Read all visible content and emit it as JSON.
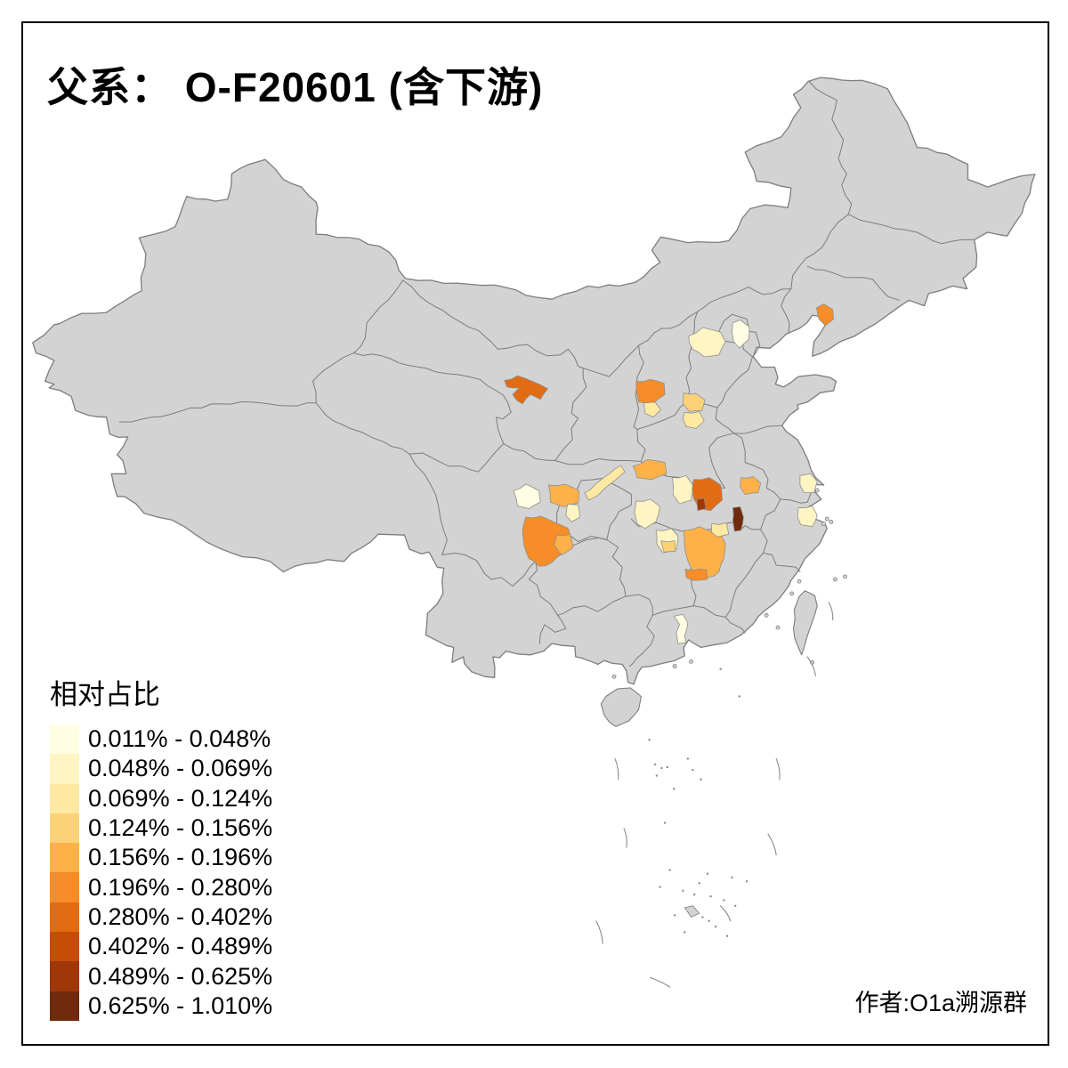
{
  "title": "父系： O-F20601 (含下游)",
  "attribution": "作者:O1a溯源群",
  "legend": {
    "title": "相对占比",
    "items": [
      {
        "label": "0.011% - 0.048%",
        "color": "#FFFEE3"
      },
      {
        "label": "0.048% - 0.069%",
        "color": "#FEF5C3"
      },
      {
        "label": "0.069% - 0.124%",
        "color": "#FEE9A3"
      },
      {
        "label": "0.124% - 0.156%",
        "color": "#FDD277"
      },
      {
        "label": "0.156% - 0.196%",
        "color": "#FDB148"
      },
      {
        "label": "0.196% - 0.280%",
        "color": "#F68D28"
      },
      {
        "label": "0.280% - 0.402%",
        "color": "#E26C13"
      },
      {
        "label": "0.402% - 0.489%",
        "color": "#C54D05"
      },
      {
        "label": "0.489% - 0.625%",
        "color": "#A03707"
      },
      {
        "label": "0.625% - 1.010%",
        "color": "#702A0D"
      }
    ]
  },
  "map": {
    "land_fill": "#D3D3D3",
    "boundary_color": "#7D7D7D",
    "sea_color": "#FFFFFF",
    "regions": [
      {
        "name": "liaoning-anshan",
        "cls": 6,
        "poly": [
          [
            121.45,
            41.3
          ],
          [
            121.9,
            41.5
          ],
          [
            122.45,
            41.2
          ],
          [
            122.5,
            40.7
          ],
          [
            122.0,
            40.35
          ],
          [
            121.6,
            40.7
          ]
        ]
      },
      {
        "name": "beijing",
        "cls": 1,
        "poly": [
          [
            116.35,
            40.5
          ],
          [
            116.8,
            40.65
          ],
          [
            117.35,
            40.3
          ],
          [
            117.3,
            39.6
          ],
          [
            116.75,
            39.15
          ],
          [
            116.4,
            39.5
          ],
          [
            116.3,
            40.0
          ]
        ]
      },
      {
        "name": "baoding",
        "cls": 2,
        "poly": [
          [
            113.65,
            39.8
          ],
          [
            114.5,
            40.25
          ],
          [
            115.6,
            40.0
          ],
          [
            115.9,
            39.5
          ],
          [
            115.5,
            38.8
          ],
          [
            114.6,
            38.7
          ],
          [
            113.9,
            39.1
          ]
        ]
      },
      {
        "name": "gansu-wuwei",
        "cls": 7,
        "poly": [
          [
            102.4,
            37.45
          ],
          [
            103.2,
            37.7
          ],
          [
            104.1,
            37.4
          ],
          [
            105.05,
            37.0
          ],
          [
            104.6,
            36.45
          ],
          [
            104.0,
            36.7
          ],
          [
            103.5,
            36.2
          ],
          [
            102.9,
            36.7
          ],
          [
            103.3,
            37.05
          ],
          [
            102.55,
            37.1
          ]
        ]
      },
      {
        "name": "shanxi-lvliang",
        "cls": 6,
        "poly": [
          [
            110.45,
            37.4
          ],
          [
            111.3,
            37.5
          ],
          [
            112.15,
            37.3
          ],
          [
            112.2,
            36.7
          ],
          [
            111.5,
            36.25
          ],
          [
            110.6,
            36.3
          ],
          [
            110.45,
            36.9
          ]
        ]
      },
      {
        "name": "shanxi-linfen",
        "cls": 3,
        "poly": [
          [
            110.9,
            36.25
          ],
          [
            111.6,
            36.3
          ],
          [
            111.95,
            35.9
          ],
          [
            111.5,
            35.5
          ],
          [
            111.0,
            35.7
          ]
        ]
      },
      {
        "name": "shanxi-changzhi",
        "cls": 4,
        "poly": [
          [
            113.35,
            36.8
          ],
          [
            114.1,
            36.75
          ],
          [
            114.65,
            36.4
          ],
          [
            114.45,
            35.85
          ],
          [
            113.7,
            35.8
          ],
          [
            113.3,
            36.2
          ]
        ]
      },
      {
        "name": "henan-jiaozuo",
        "cls": 3,
        "poly": [
          [
            113.4,
            35.75
          ],
          [
            114.3,
            35.8
          ],
          [
            114.6,
            35.3
          ],
          [
            114.1,
            34.9
          ],
          [
            113.5,
            35.0
          ],
          [
            113.3,
            35.4
          ]
        ]
      },
      {
        "name": "chengdu",
        "cls": 1,
        "poly": [
          [
            102.95,
            31.6
          ],
          [
            103.7,
            31.95
          ],
          [
            104.5,
            31.6
          ],
          [
            104.6,
            31.0
          ],
          [
            103.9,
            30.65
          ],
          [
            103.2,
            30.8
          ]
        ]
      },
      {
        "name": "nanchong",
        "cls": 5,
        "poly": [
          [
            105.1,
            31.9
          ],
          [
            106.1,
            31.95
          ],
          [
            106.95,
            31.6
          ],
          [
            106.9,
            30.95
          ],
          [
            106.0,
            30.75
          ],
          [
            105.2,
            31.0
          ]
        ]
      },
      {
        "name": "guangan",
        "cls": 2,
        "poly": [
          [
            106.25,
            30.9
          ],
          [
            106.9,
            30.85
          ],
          [
            107.0,
            30.2
          ],
          [
            106.5,
            29.95
          ],
          [
            106.15,
            30.3
          ]
        ]
      },
      {
        "name": "sichuan-south",
        "cls": 6,
        "poly": [
          [
            103.7,
            30.2
          ],
          [
            104.6,
            30.25
          ],
          [
            105.5,
            29.9
          ],
          [
            106.3,
            29.6
          ],
          [
            106.5,
            29.0
          ],
          [
            106.0,
            28.3
          ],
          [
            105.3,
            27.8
          ],
          [
            104.5,
            27.6
          ],
          [
            103.9,
            28.0
          ],
          [
            103.6,
            28.7
          ],
          [
            103.5,
            29.5
          ]
        ]
      },
      {
        "name": "luzhou",
        "cls": 5,
        "poly": [
          [
            105.6,
            29.25
          ],
          [
            106.4,
            29.3
          ],
          [
            106.6,
            28.6
          ],
          [
            105.9,
            28.2
          ],
          [
            105.45,
            28.7
          ]
        ]
      },
      {
        "name": "wanzhou",
        "cls": 3,
        "poly": [
          [
            107.3,
            31.5
          ],
          [
            107.9,
            31.9
          ],
          [
            108.8,
            32.5
          ],
          [
            109.5,
            32.95
          ],
          [
            109.75,
            32.6
          ],
          [
            109.0,
            32.05
          ],
          [
            108.1,
            31.35
          ],
          [
            107.55,
            31.1
          ]
        ]
      },
      {
        "name": "shiyan",
        "cls": 5,
        "poly": [
          [
            110.25,
            32.9
          ],
          [
            111.1,
            33.25
          ],
          [
            112.2,
            33.1
          ],
          [
            112.3,
            32.5
          ],
          [
            111.4,
            32.2
          ],
          [
            110.5,
            32.3
          ]
        ]
      },
      {
        "name": "jingmen",
        "cls": 2,
        "poly": [
          [
            112.65,
            32.3
          ],
          [
            113.5,
            32.4
          ],
          [
            113.9,
            31.9
          ],
          [
            113.8,
            31.1
          ],
          [
            113.1,
            30.9
          ],
          [
            112.7,
            31.4
          ]
        ]
      },
      {
        "name": "yichang",
        "cls": 2,
        "poly": [
          [
            110.45,
            31.05
          ],
          [
            111.3,
            31.15
          ],
          [
            111.9,
            30.75
          ],
          [
            111.65,
            29.95
          ],
          [
            111.0,
            29.6
          ],
          [
            110.5,
            29.85
          ],
          [
            110.35,
            30.45
          ]
        ]
      },
      {
        "name": "wuhan-xiaogan",
        "cls": 7,
        "poly": [
          [
            113.95,
            32.2
          ],
          [
            114.9,
            32.3
          ],
          [
            115.6,
            31.9
          ],
          [
            115.7,
            31.1
          ],
          [
            115.0,
            30.55
          ],
          [
            114.3,
            30.65
          ],
          [
            113.95,
            31.2
          ]
        ]
      },
      {
        "name": "wuhan-dark",
        "cls": 9,
        "poly": [
          [
            114.15,
            31.15
          ],
          [
            114.6,
            31.2
          ],
          [
            114.7,
            30.65
          ],
          [
            114.2,
            30.55
          ]
        ]
      },
      {
        "name": "hefei",
        "cls": 5,
        "poly": [
          [
            116.85,
            32.3
          ],
          [
            117.6,
            32.35
          ],
          [
            118.05,
            32.0
          ],
          [
            117.9,
            31.5
          ],
          [
            117.1,
            31.4
          ],
          [
            116.8,
            31.8
          ]
        ]
      },
      {
        "name": "anqing",
        "cls": 10,
        "poly": [
          [
            116.35,
            30.7
          ],
          [
            116.8,
            30.75
          ],
          [
            117.0,
            30.2
          ],
          [
            116.85,
            29.5
          ],
          [
            116.45,
            29.45
          ],
          [
            116.35,
            30.0
          ]
        ]
      },
      {
        "name": "hunan-jiangxi",
        "cls": 5,
        "poly": [
          [
            113.35,
            29.5
          ],
          [
            114.3,
            29.7
          ],
          [
            115.1,
            29.4
          ],
          [
            115.6,
            29.4
          ],
          [
            115.9,
            28.8
          ],
          [
            115.8,
            28.0
          ],
          [
            115.5,
            27.3
          ],
          [
            114.8,
            27.0
          ],
          [
            114.3,
            27.3
          ],
          [
            113.9,
            27.3
          ],
          [
            113.6,
            27.9
          ],
          [
            113.4,
            28.6
          ]
        ]
      },
      {
        "name": "jiujiang",
        "cls": 3,
        "poly": [
          [
            115.05,
            29.85
          ],
          [
            115.95,
            29.9
          ],
          [
            116.1,
            29.3
          ],
          [
            115.4,
            29.15
          ],
          [
            115.05,
            29.4
          ]
        ]
      },
      {
        "name": "jian",
        "cls": 6,
        "poly": [
          [
            113.45,
            27.45
          ],
          [
            114.75,
            27.4
          ],
          [
            114.8,
            26.9
          ],
          [
            113.9,
            26.85
          ],
          [
            113.5,
            27.0
          ]
        ]
      },
      {
        "name": "changde",
        "cls": 2,
        "poly": [
          [
            111.65,
            29.5
          ],
          [
            112.6,
            29.6
          ],
          [
            113.0,
            29.2
          ],
          [
            112.9,
            28.5
          ],
          [
            112.1,
            28.3
          ],
          [
            111.7,
            28.8
          ]
        ]
      },
      {
        "name": "yiyang",
        "cls": 4,
        "poly": [
          [
            111.95,
            28.95
          ],
          [
            112.8,
            28.95
          ],
          [
            112.85,
            28.4
          ],
          [
            112.15,
            28.35
          ]
        ]
      },
      {
        "name": "suzhou-nantong",
        "cls": 2,
        "poly": [
          [
            120.45,
            32.4
          ],
          [
            121.1,
            32.5
          ],
          [
            121.5,
            32.1
          ],
          [
            121.3,
            31.5
          ],
          [
            120.7,
            31.5
          ],
          [
            120.45,
            31.9
          ]
        ]
      },
      {
        "name": "ningbo-shaoxing",
        "cls": 2,
        "poly": [
          [
            120.35,
            30.7
          ],
          [
            121.2,
            30.8
          ],
          [
            121.5,
            30.3
          ],
          [
            121.2,
            29.7
          ],
          [
            120.5,
            29.8
          ],
          [
            120.3,
            30.2
          ]
        ]
      },
      {
        "name": "qingyuan",
        "cls": 1,
        "poly": [
          [
            112.75,
            24.95
          ],
          [
            113.3,
            25.05
          ],
          [
            113.6,
            24.6
          ],
          [
            113.4,
            23.9
          ],
          [
            113.5,
            23.55
          ],
          [
            113.0,
            23.5
          ],
          [
            112.9,
            24.1
          ],
          [
            113.1,
            24.5
          ]
        ]
      }
    ]
  }
}
